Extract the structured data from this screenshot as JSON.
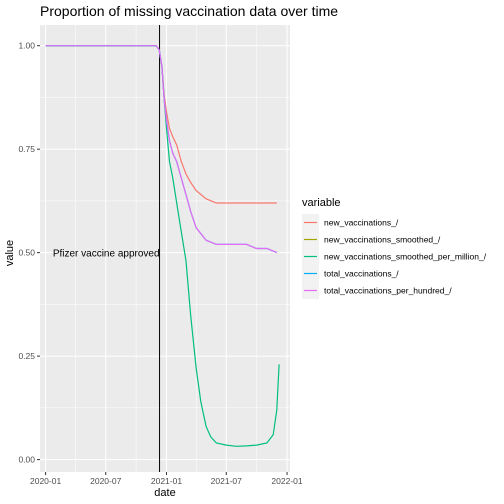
{
  "chart_data": {
    "type": "line",
    "title": "Proportion of missing vaccination data over time",
    "xlabel": "date",
    "ylabel": "value",
    "x_ticks": [
      "2020-01",
      "2020-07",
      "2021-01",
      "2021-07",
      "2022-01"
    ],
    "y_ticks": [
      "0.00",
      "0.25",
      "0.50",
      "0.75",
      "1.00"
    ],
    "xlim": [
      "2019-12-15",
      "2022-01-10"
    ],
    "ylim": [
      -0.03,
      1.05
    ],
    "grid": true,
    "legend_position": "right",
    "legend_title": "variable",
    "annotation": {
      "text": "Pfizer vaccine approved",
      "x": "2020-12-11",
      "y": 0.5
    },
    "vline_x": "2020-12-11",
    "series": [
      {
        "name": "new_vaccinations_/",
        "color": "#F8766D",
        "points": [
          [
            "2020-01-01",
            1.0
          ],
          [
            "2020-11-20",
            1.0
          ],
          [
            "2020-12-01",
            1.0
          ],
          [
            "2020-12-10",
            0.99
          ],
          [
            "2020-12-18",
            0.95
          ],
          [
            "2020-12-25",
            0.88
          ],
          [
            "2021-01-01",
            0.84
          ],
          [
            "2021-01-10",
            0.8
          ],
          [
            "2021-01-20",
            0.78
          ],
          [
            "2021-02-01",
            0.76
          ],
          [
            "2021-02-15",
            0.72
          ],
          [
            "2021-03-01",
            0.69
          ],
          [
            "2021-03-15",
            0.67
          ],
          [
            "2021-04-01",
            0.65
          ],
          [
            "2021-05-01",
            0.63
          ],
          [
            "2021-06-01",
            0.62
          ],
          [
            "2021-07-01",
            0.62
          ],
          [
            "2021-08-01",
            0.62
          ],
          [
            "2021-09-01",
            0.62
          ],
          [
            "2021-10-01",
            0.62
          ],
          [
            "2021-11-01",
            0.62
          ],
          [
            "2021-12-01",
            0.62
          ]
        ]
      },
      {
        "name": "new_vaccinations_smoothed_/",
        "color": "#A3A500",
        "points": []
      },
      {
        "name": "new_vaccinations_smoothed_per_million_/",
        "color": "#00BF7D",
        "points": [
          [
            "2020-01-01",
            1.0
          ],
          [
            "2020-11-20",
            1.0
          ],
          [
            "2020-12-01",
            1.0
          ],
          [
            "2020-12-10",
            0.99
          ],
          [
            "2020-12-18",
            0.95
          ],
          [
            "2020-12-25",
            0.87
          ],
          [
            "2021-01-01",
            0.8
          ],
          [
            "2021-01-10",
            0.72
          ],
          [
            "2021-01-20",
            0.68
          ],
          [
            "2021-02-01",
            0.62
          ],
          [
            "2021-02-15",
            0.55
          ],
          [
            "2021-03-01",
            0.48
          ],
          [
            "2021-03-15",
            0.35
          ],
          [
            "2021-04-01",
            0.22
          ],
          [
            "2021-04-15",
            0.14
          ],
          [
            "2021-05-01",
            0.08
          ],
          [
            "2021-05-15",
            0.055
          ],
          [
            "2021-06-01",
            0.04
          ],
          [
            "2021-07-01",
            0.035
          ],
          [
            "2021-08-01",
            0.032
          ],
          [
            "2021-09-01",
            0.033
          ],
          [
            "2021-10-01",
            0.035
          ],
          [
            "2021-11-01",
            0.04
          ],
          [
            "2021-11-20",
            0.06
          ],
          [
            "2021-12-01",
            0.12
          ],
          [
            "2021-12-08",
            0.23
          ]
        ]
      },
      {
        "name": "total_vaccinations_/",
        "color": "#00B0F6",
        "points": [
          [
            "2020-01-01",
            1.0
          ],
          [
            "2020-11-20",
            1.0
          ],
          [
            "2020-12-01",
            1.0
          ],
          [
            "2020-12-10",
            0.99
          ],
          [
            "2020-12-18",
            0.95
          ],
          [
            "2020-12-25",
            0.87
          ],
          [
            "2021-01-01",
            0.82
          ],
          [
            "2021-01-10",
            0.77
          ],
          [
            "2021-01-20",
            0.74
          ],
          [
            "2021-02-01",
            0.72
          ],
          [
            "2021-02-15",
            0.68
          ],
          [
            "2021-03-01",
            0.64
          ],
          [
            "2021-03-15",
            0.6
          ],
          [
            "2021-04-01",
            0.56
          ],
          [
            "2021-05-01",
            0.53
          ],
          [
            "2021-06-01",
            0.52
          ],
          [
            "2021-07-01",
            0.52
          ],
          [
            "2021-08-01",
            0.52
          ],
          [
            "2021-09-01",
            0.52
          ],
          [
            "2021-10-01",
            0.51
          ],
          [
            "2021-11-01",
            0.51
          ],
          [
            "2021-12-01",
            0.5
          ]
        ]
      },
      {
        "name": "total_vaccinations_per_hundred_/",
        "color": "#E76BF3",
        "points": [
          [
            "2020-01-01",
            1.0
          ],
          [
            "2020-11-20",
            1.0
          ],
          [
            "2020-12-01",
            1.0
          ],
          [
            "2020-12-10",
            0.99
          ],
          [
            "2020-12-18",
            0.95
          ],
          [
            "2020-12-25",
            0.87
          ],
          [
            "2021-01-01",
            0.82
          ],
          [
            "2021-01-10",
            0.77
          ],
          [
            "2021-01-20",
            0.74
          ],
          [
            "2021-02-01",
            0.72
          ],
          [
            "2021-02-15",
            0.68
          ],
          [
            "2021-03-01",
            0.64
          ],
          [
            "2021-03-15",
            0.6
          ],
          [
            "2021-04-01",
            0.56
          ],
          [
            "2021-05-01",
            0.53
          ],
          [
            "2021-06-01",
            0.52
          ],
          [
            "2021-07-01",
            0.52
          ],
          [
            "2021-08-01",
            0.52
          ],
          [
            "2021-09-01",
            0.52
          ],
          [
            "2021-10-01",
            0.51
          ],
          [
            "2021-11-01",
            0.51
          ],
          [
            "2021-12-01",
            0.5
          ]
        ]
      }
    ]
  }
}
